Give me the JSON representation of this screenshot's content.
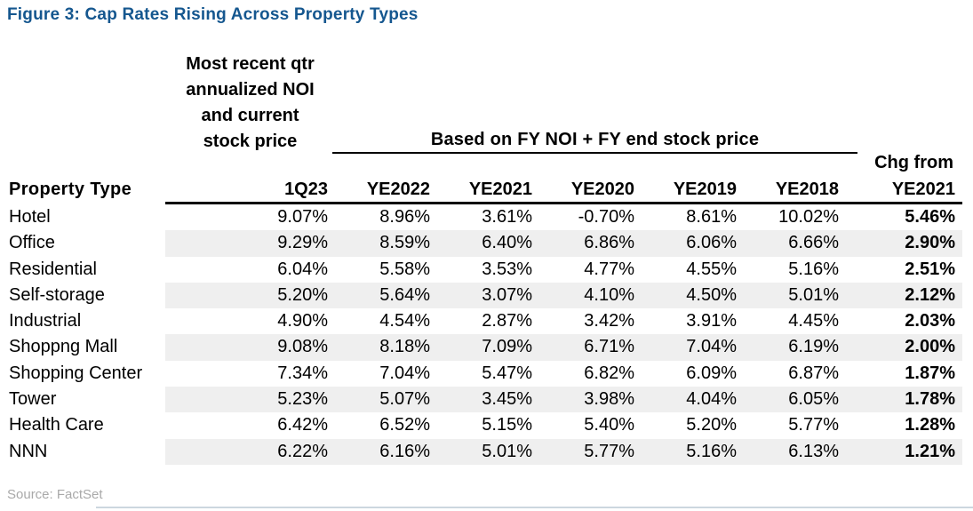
{
  "figure": {
    "title": "Figure 3: Cap Rates Rising Across Property Types",
    "source": "Source: FactSet"
  },
  "table": {
    "note_lines": [
      "Most recent qtr",
      "annualized NOI",
      "and current",
      "stock price"
    ],
    "span_header": "Based on FY NOI + FY end stock price",
    "chg_header_line1": "Chg from",
    "columns": [
      "Property Type",
      "1Q23",
      "YE2022",
      "YE2021",
      "YE2020",
      "YE2019",
      "YE2018",
      "YE2021"
    ],
    "rows": [
      {
        "label": "Hotel",
        "values": [
          "9.07%",
          "8.96%",
          "3.61%",
          "-0.70%",
          "8.61%",
          "10.02%",
          "5.46%"
        ]
      },
      {
        "label": "Office",
        "values": [
          "9.29%",
          "8.59%",
          "6.40%",
          "6.86%",
          "6.06%",
          "6.66%",
          "2.90%"
        ]
      },
      {
        "label": "Residential",
        "values": [
          "6.04%",
          "5.58%",
          "3.53%",
          "4.77%",
          "4.55%",
          "5.16%",
          "2.51%"
        ]
      },
      {
        "label": "Self-storage",
        "values": [
          "5.20%",
          "5.64%",
          "3.07%",
          "4.10%",
          "4.50%",
          "5.01%",
          "2.12%"
        ]
      },
      {
        "label": "Industrial",
        "values": [
          "4.90%",
          "4.54%",
          "2.87%",
          "3.42%",
          "3.91%",
          "4.45%",
          "2.03%"
        ]
      },
      {
        "label": "Shoppng Mall",
        "values": [
          "9.08%",
          "8.18%",
          "7.09%",
          "6.71%",
          "7.04%",
          "6.19%",
          "2.00%"
        ]
      },
      {
        "label": "Shopping Center",
        "values": [
          "7.34%",
          "7.04%",
          "5.47%",
          "6.82%",
          "6.09%",
          "6.87%",
          "1.87%"
        ]
      },
      {
        "label": "Tower",
        "values": [
          "5.23%",
          "5.07%",
          "3.45%",
          "3.98%",
          "4.04%",
          "6.05%",
          "1.78%"
        ]
      },
      {
        "label": "Health Care",
        "values": [
          "6.42%",
          "6.52%",
          "5.15%",
          "5.40%",
          "5.20%",
          "5.77%",
          "1.28%"
        ]
      },
      {
        "label": "NNN",
        "values": [
          "6.22%",
          "6.16%",
          "5.01%",
          "5.77%",
          "5.16%",
          "6.13%",
          "1.21%"
        ]
      }
    ]
  },
  "colors": {
    "title_blue": "#15578f",
    "row_band_gray": "#efefef",
    "source_gray": "#a9a9a9"
  },
  "chart_data": {
    "type": "table",
    "title": "Figure 3: Cap Rates Rising Across Property Types",
    "column_group_note": "Most recent qtr annualized NOI and current stock price (1Q23)",
    "column_group_span": "Based on FY NOI + FY end stock price (YE2022-YE2018)",
    "columns": [
      "1Q23",
      "YE2022",
      "YE2021",
      "YE2020",
      "YE2019",
      "YE2018",
      "Chg from YE2021"
    ],
    "categories": [
      "Hotel",
      "Office",
      "Residential",
      "Self-storage",
      "Industrial",
      "Shoppng Mall",
      "Shopping Center",
      "Tower",
      "Health Care",
      "NNN"
    ],
    "series": [
      {
        "name": "1Q23",
        "values": [
          9.07,
          9.29,
          6.04,
          5.2,
          4.9,
          9.08,
          7.34,
          5.23,
          6.42,
          6.22
        ]
      },
      {
        "name": "YE2022",
        "values": [
          8.96,
          8.59,
          5.58,
          5.64,
          4.54,
          8.18,
          7.04,
          5.07,
          6.52,
          6.16
        ]
      },
      {
        "name": "YE2021",
        "values": [
          3.61,
          6.4,
          3.53,
          3.07,
          2.87,
          7.09,
          5.47,
          3.45,
          5.15,
          5.01
        ]
      },
      {
        "name": "YE2020",
        "values": [
          -0.7,
          6.86,
          4.77,
          4.1,
          3.42,
          6.71,
          6.82,
          3.98,
          5.4,
          5.77
        ]
      },
      {
        "name": "YE2019",
        "values": [
          8.61,
          6.06,
          4.55,
          4.5,
          3.91,
          7.04,
          6.09,
          4.04,
          5.2,
          5.16
        ]
      },
      {
        "name": "YE2018",
        "values": [
          10.02,
          6.66,
          5.16,
          5.01,
          4.45,
          6.19,
          6.87,
          6.05,
          5.77,
          6.13
        ]
      },
      {
        "name": "Chg from YE2021",
        "values": [
          5.46,
          2.9,
          2.51,
          2.12,
          2.03,
          2.0,
          1.87,
          1.78,
          1.28,
          1.21
        ]
      }
    ],
    "units": "percent",
    "source": "FactSet"
  }
}
